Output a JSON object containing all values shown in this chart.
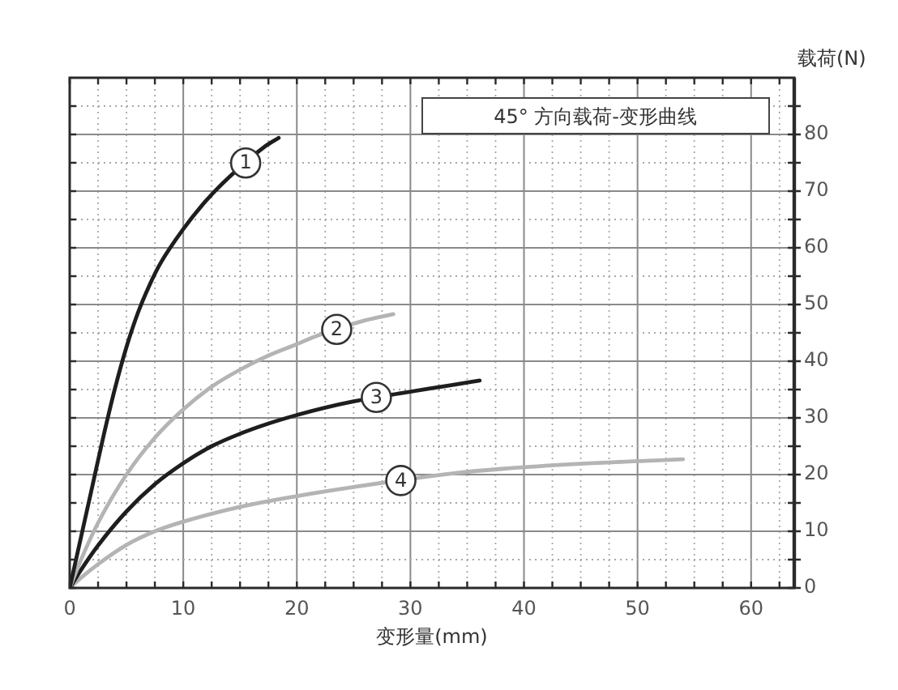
{
  "chart_data": {
    "type": "line",
    "title": "45° 方向载荷-变形曲线",
    "xlabel": "变形量(mm)",
    "ylabel": "载荷(N)",
    "xlim": [
      0,
      63.8
    ],
    "xticks": [
      0,
      {
        "value": 2.5,
        "label": null
      },
      {
        "value": 5,
        "label": null
      },
      {
        "value": 7.5,
        "label": null
      },
      10,
      {
        "value": 12.5,
        "label": null
      },
      {
        "value": 15,
        "label": null
      },
      {
        "value": 17.5,
        "label": null
      },
      20,
      {
        "value": 22.5,
        "label": null
      },
      {
        "value": 25,
        "label": null
      },
      {
        "value": 27.5,
        "label": null
      },
      30,
      {
        "value": 32.5,
        "label": null
      },
      {
        "value": 35,
        "label": null
      },
      {
        "value": 37.5,
        "label": null
      },
      40,
      {
        "value": 42.5,
        "label": null
      },
      {
        "value": 45,
        "label": null
      },
      {
        "value": 47.5,
        "label": null
      },
      50,
      {
        "value": 52.5,
        "label": null
      },
      {
        "value": 55,
        "label": null
      },
      {
        "value": 57.5,
        "label": null
      },
      60,
      {
        "value": 62.5,
        "label": null
      }
    ],
    "ylim": [
      0,
      90
    ],
    "yticks": [
      0,
      {
        "value": 5,
        "label": null
      },
      10,
      {
        "value": 15,
        "label": null
      },
      20,
      {
        "value": 25,
        "label": null
      },
      30,
      {
        "value": 35,
        "label": null
      },
      40,
      {
        "value": 45,
        "label": null
      },
      50,
      {
        "value": 55,
        "label": null
      },
      60,
      {
        "value": 65,
        "label": null
      },
      70,
      {
        "value": 75,
        "label": null
      },
      80,
      {
        "value": 85,
        "label": null
      }
    ],
    "grid": true,
    "legend": false,
    "marker": "none",
    "line_style": "solid",
    "series": [
      {
        "name": "1",
        "color": "#1e1e1e",
        "x": [
          0,
          1,
          2,
          3,
          4,
          5,
          6,
          7,
          8,
          10,
          12,
          14,
          17.2,
          18.4
        ],
        "values": [
          0,
          9,
          18,
          27,
          35.3,
          42.5,
          48.5,
          53.3,
          57.3,
          63.3,
          68.3,
          72.4,
          77.9,
          79.4
        ]
      },
      {
        "name": "2",
        "color": "#b4b4b4",
        "x": [
          0,
          1,
          2.5,
          5,
          7.5,
          10,
          12.5,
          15,
          17.5,
          20,
          21.8,
          26,
          28.5
        ],
        "values": [
          0,
          5,
          11.5,
          20,
          26.5,
          31.5,
          35.5,
          38.5,
          41,
          43,
          44.5,
          47.2,
          48.3
        ]
      },
      {
        "name": "3",
        "color": "#1e1e1e",
        "x": [
          0,
          1,
          2.5,
          5,
          7.5,
          10,
          12.5,
          15,
          17.5,
          20,
          22.5,
          25,
          29,
          33.7,
          36.1
        ],
        "values": [
          0,
          3.2,
          7.5,
          13.5,
          18.3,
          22,
          25,
          27.2,
          29,
          30.5,
          31.8,
          32.9,
          34.3,
          35.8,
          36.6
        ]
      },
      {
        "name": "4",
        "color": "#b4b4b4",
        "x": [
          0,
          1,
          2.5,
          5,
          7.5,
          10,
          15,
          20,
          25,
          33.7,
          38,
          45,
          54
        ],
        "values": [
          0,
          1.8,
          4.2,
          7.6,
          10,
          11.7,
          14.3,
          16.2,
          17.8,
          20.2,
          21,
          21.9,
          22.7
        ]
      }
    ]
  }
}
